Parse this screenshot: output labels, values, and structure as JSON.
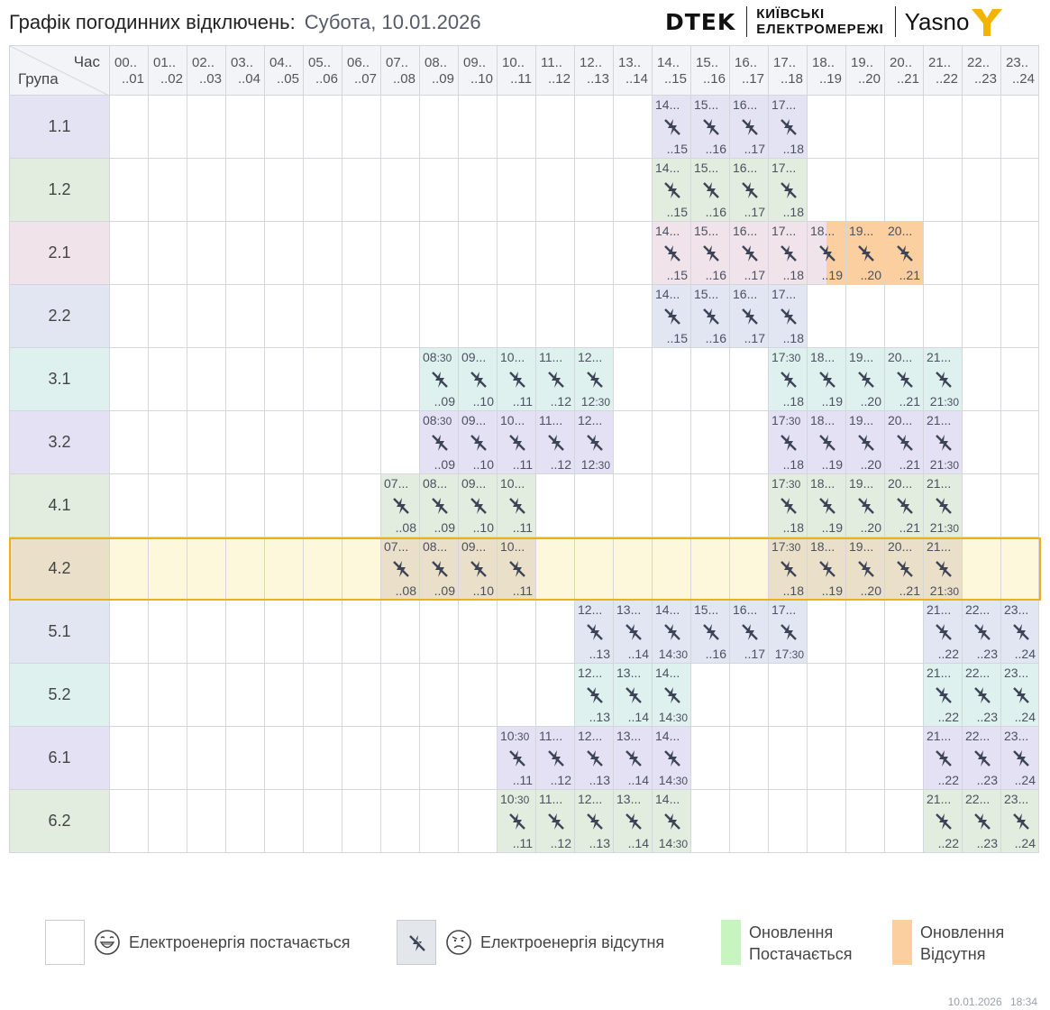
{
  "header": {
    "title": "Графік погодинних відключень:",
    "date": "Субота, 10.01.2026"
  },
  "logos": {
    "dtek": "DTEK",
    "company_line1": "КИЇВСЬКІ",
    "company_line2": "ЕЛЕКТРОМЕРЕЖІ",
    "yasno": "Yasno"
  },
  "table": {
    "corner_hour_label": "Час",
    "corner_group_label": "Група",
    "hours": [
      {
        "start": "00..",
        "end": "..01"
      },
      {
        "start": "01..",
        "end": "..02"
      },
      {
        "start": "02..",
        "end": "..03"
      },
      {
        "start": "03..",
        "end": "..04"
      },
      {
        "start": "04..",
        "end": "..05"
      },
      {
        "start": "05..",
        "end": "..06"
      },
      {
        "start": "06..",
        "end": "..07"
      },
      {
        "start": "07..",
        "end": "..08"
      },
      {
        "start": "08..",
        "end": "..09"
      },
      {
        "start": "09..",
        "end": "..10"
      },
      {
        "start": "10..",
        "end": "..11"
      },
      {
        "start": "11..",
        "end": "..12"
      },
      {
        "start": "12..",
        "end": "..13"
      },
      {
        "start": "13..",
        "end": "..14"
      },
      {
        "start": "14..",
        "end": "..15"
      },
      {
        "start": "15..",
        "end": "..16"
      },
      {
        "start": "16..",
        "end": "..17"
      },
      {
        "start": "17..",
        "end": "..18"
      },
      {
        "start": "18..",
        "end": "..19"
      },
      {
        "start": "19..",
        "end": "..20"
      },
      {
        "start": "20..",
        "end": "..21"
      },
      {
        "start": "21..",
        "end": "..22"
      },
      {
        "start": "22..",
        "end": "..23"
      },
      {
        "start": "23..",
        "end": "..24"
      }
    ],
    "selected_group": "4.2",
    "groups": [
      {
        "name": "1.1",
        "color": "#e3e3f3",
        "off": [
          {
            "h": 14,
            "start": "14...",
            "end": "..15"
          },
          {
            "h": 15,
            "start": "15...",
            "end": "..16"
          },
          {
            "h": 16,
            "start": "16...",
            "end": "..17"
          },
          {
            "h": 17,
            "start": "17...",
            "end": "..18"
          }
        ]
      },
      {
        "name": "1.2",
        "color": "#e2ecdf",
        "off": [
          {
            "h": 14,
            "start": "14...",
            "end": "..15"
          },
          {
            "h": 15,
            "start": "15...",
            "end": "..16"
          },
          {
            "h": 16,
            "start": "16...",
            "end": "..17"
          },
          {
            "h": 17,
            "start": "17...",
            "end": "..18"
          }
        ]
      },
      {
        "name": "2.1",
        "color": "#f0e3ea",
        "off": [
          {
            "h": 14,
            "start": "14...",
            "end": "..15"
          },
          {
            "h": 15,
            "start": "15...",
            "end": "..16"
          },
          {
            "h": 16,
            "start": "16...",
            "end": "..17"
          },
          {
            "h": 17,
            "start": "17...",
            "end": "..18"
          },
          {
            "h": 18,
            "start": "18...",
            "end": "..19",
            "upd": "half"
          },
          {
            "h": 19,
            "start": "19...",
            "end": "..20",
            "upd": "full"
          },
          {
            "h": 20,
            "start": "20...",
            "end": "..21",
            "upd": "full"
          }
        ]
      },
      {
        "name": "2.2",
        "color": "#e1e6f2",
        "off": [
          {
            "h": 14,
            "start": "14...",
            "end": "..15"
          },
          {
            "h": 15,
            "start": "15...",
            "end": "..16"
          },
          {
            "h": 16,
            "start": "16...",
            "end": "..17"
          },
          {
            "h": 17,
            "start": "17...",
            "end": "..18"
          }
        ]
      },
      {
        "name": "3.1",
        "color": "#dff1ef",
        "off": [
          {
            "h": 8,
            "start": "08",
            "sm": ":30",
            "end": "..09"
          },
          {
            "h": 9,
            "start": "09...",
            "end": "..10"
          },
          {
            "h": 10,
            "start": "10...",
            "end": "..11"
          },
          {
            "h": 11,
            "start": "11...",
            "end": "..12"
          },
          {
            "h": 12,
            "start": "12...",
            "end": "12",
            "esm": ":30"
          },
          {
            "h": 17,
            "start": "17",
            "sm": ":30",
            "end": "..18"
          },
          {
            "h": 18,
            "start": "18...",
            "end": "..19"
          },
          {
            "h": 19,
            "start": "19...",
            "end": "..20"
          },
          {
            "h": 20,
            "start": "20...",
            "end": "..21"
          },
          {
            "h": 21,
            "start": "21...",
            "end": "21",
            "esm": ":30"
          }
        ]
      },
      {
        "name": "3.2",
        "color": "#e3e1f3",
        "off": [
          {
            "h": 8,
            "start": "08",
            "sm": ":30",
            "end": "..09"
          },
          {
            "h": 9,
            "start": "09...",
            "end": "..10"
          },
          {
            "h": 10,
            "start": "10...",
            "end": "..11"
          },
          {
            "h": 11,
            "start": "11...",
            "end": "..12"
          },
          {
            "h": 12,
            "start": "12...",
            "end": "12",
            "esm": ":30"
          },
          {
            "h": 17,
            "start": "17",
            "sm": ":30",
            "end": "..18"
          },
          {
            "h": 18,
            "start": "18...",
            "end": "..19"
          },
          {
            "h": 19,
            "start": "19...",
            "end": "..20"
          },
          {
            "h": 20,
            "start": "20...",
            "end": "..21"
          },
          {
            "h": 21,
            "start": "21...",
            "end": "21",
            "esm": ":30"
          }
        ]
      },
      {
        "name": "4.1",
        "color": "#e2ecdf",
        "off": [
          {
            "h": 7,
            "start": "07...",
            "end": "..08"
          },
          {
            "h": 8,
            "start": "08...",
            "end": "..09"
          },
          {
            "h": 9,
            "start": "09...",
            "end": "..10"
          },
          {
            "h": 10,
            "start": "10...",
            "end": "..11"
          },
          {
            "h": 17,
            "start": "17",
            "sm": ":30",
            "end": "..18"
          },
          {
            "h": 18,
            "start": "18...",
            "end": "..19"
          },
          {
            "h": 19,
            "start": "19...",
            "end": "..20"
          },
          {
            "h": 20,
            "start": "20...",
            "end": "..21"
          },
          {
            "h": 21,
            "start": "21...",
            "end": "21",
            "esm": ":30"
          }
        ]
      },
      {
        "name": "4.2",
        "color": "#eadfc8",
        "off": [
          {
            "h": 7,
            "start": "07...",
            "end": "..08"
          },
          {
            "h": 8,
            "start": "08...",
            "end": "..09"
          },
          {
            "h": 9,
            "start": "09...",
            "end": "..10"
          },
          {
            "h": 10,
            "start": "10...",
            "end": "..11"
          },
          {
            "h": 17,
            "start": "17",
            "sm": ":30",
            "end": "..18"
          },
          {
            "h": 18,
            "start": "18...",
            "end": "..19"
          },
          {
            "h": 19,
            "start": "19...",
            "end": "..20"
          },
          {
            "h": 20,
            "start": "20...",
            "end": "..21"
          },
          {
            "h": 21,
            "start": "21...",
            "end": "21",
            "esm": ":30"
          }
        ]
      },
      {
        "name": "5.1",
        "color": "#e1e6f2",
        "off": [
          {
            "h": 12,
            "start": "12...",
            "end": "..13"
          },
          {
            "h": 13,
            "start": "13...",
            "end": "..14"
          },
          {
            "h": 14,
            "start": "14...",
            "end": "14",
            "esm": ":30"
          },
          {
            "h": 15,
            "start": "15...",
            "end": "..16"
          },
          {
            "h": 16,
            "start": "16...",
            "end": "..17"
          },
          {
            "h": 17,
            "start": "17...",
            "end": "17",
            "esm": ":30"
          },
          {
            "h": 21,
            "start": "21...",
            "end": "..22"
          },
          {
            "h": 22,
            "start": "22...",
            "end": "..23"
          },
          {
            "h": 23,
            "start": "23...",
            "end": "..24"
          }
        ]
      },
      {
        "name": "5.2",
        "color": "#dff1ef",
        "off": [
          {
            "h": 12,
            "start": "12...",
            "end": "..13"
          },
          {
            "h": 13,
            "start": "13...",
            "end": "..14"
          },
          {
            "h": 14,
            "start": "14...",
            "end": "14",
            "esm": ":30"
          },
          {
            "h": 21,
            "start": "21...",
            "end": "..22"
          },
          {
            "h": 22,
            "start": "22...",
            "end": "..23"
          },
          {
            "h": 23,
            "start": "23...",
            "end": "..24"
          }
        ]
      },
      {
        "name": "6.1",
        "color": "#e3e1f3",
        "off": [
          {
            "h": 10,
            "start": "10",
            "sm": ":30",
            "end": "..11"
          },
          {
            "h": 11,
            "start": "11...",
            "end": "..12"
          },
          {
            "h": 12,
            "start": "12...",
            "end": "..13"
          },
          {
            "h": 13,
            "start": "13...",
            "end": "..14"
          },
          {
            "h": 14,
            "start": "14...",
            "end": "14",
            "esm": ":30"
          },
          {
            "h": 21,
            "start": "21...",
            "end": "..22"
          },
          {
            "h": 22,
            "start": "22...",
            "end": "..23"
          },
          {
            "h": 23,
            "start": "23...",
            "end": "..24"
          }
        ]
      },
      {
        "name": "6.2",
        "color": "#e2ecdf",
        "off": [
          {
            "h": 10,
            "start": "10",
            "sm": ":30",
            "end": "..11"
          },
          {
            "h": 11,
            "start": "11...",
            "end": "..12"
          },
          {
            "h": 12,
            "start": "12...",
            "end": "..13"
          },
          {
            "h": 13,
            "start": "13...",
            "end": "..14"
          },
          {
            "h": 14,
            "start": "14...",
            "end": "14",
            "esm": ":30"
          },
          {
            "h": 21,
            "start": "21...",
            "end": "..22"
          },
          {
            "h": 22,
            "start": "22...",
            "end": "..23"
          },
          {
            "h": 23,
            "start": "23...",
            "end": "..24"
          }
        ]
      }
    ]
  },
  "legend": {
    "power_on": "Електроенергія постачається",
    "power_off": "Електроенергія відсутня",
    "update_on_line1": "Оновлення",
    "update_on_line2": "Постачається",
    "update_off_line1": "Оновлення",
    "update_off_line2": "Відсутня"
  },
  "colors": {
    "selected_row": "#fdf8dc",
    "selected_border": "#f1ae1b",
    "update_on": "#c8f5bf",
    "update_off": "#fbcf9f",
    "icon": "#3d4457"
  },
  "footer": {
    "date": "10.01.2026",
    "time": "18:34"
  }
}
